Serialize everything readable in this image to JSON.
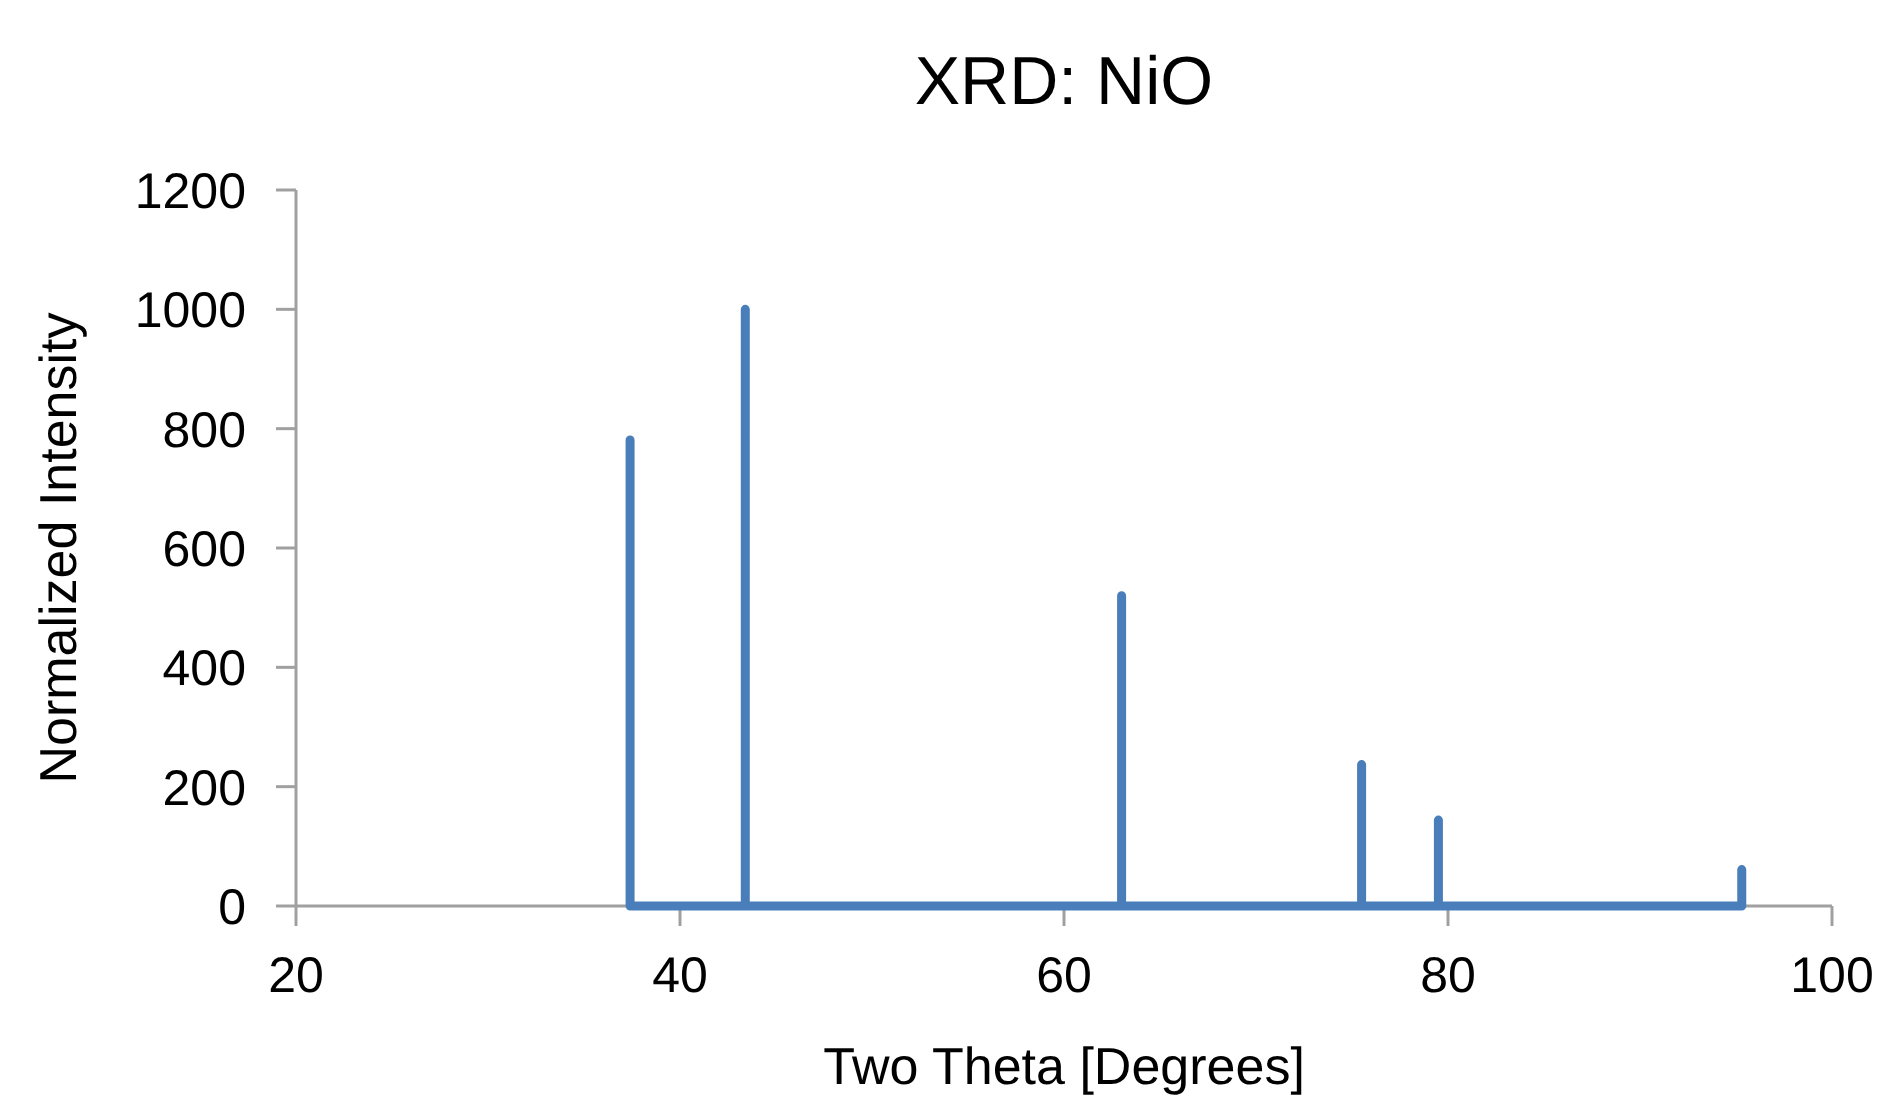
{
  "chart_data": {
    "type": "line",
    "title": "XRD: NiO",
    "xlabel": "Two Theta [Degrees]",
    "ylabel": "Normalized Intensity",
    "x": [
      37.4,
      37.4,
      37.4,
      43.4,
      43.4,
      43.4,
      63.0,
      63.0,
      63.0,
      75.5,
      75.5,
      75.5,
      79.5,
      79.5,
      79.5,
      95.3,
      95.3
    ],
    "series": [
      {
        "color": "#4a7ebb",
        "values": [
          0,
          781,
          0,
          0,
          1000,
          0,
          0,
          520,
          0,
          0,
          237,
          0,
          0,
          144,
          0,
          0,
          61
        ]
      }
    ],
    "xlim": [
      20,
      100
    ],
    "xticks": [
      20,
      40,
      60,
      80,
      100
    ],
    "ylim": [
      0,
      1200
    ],
    "yticks": [
      0,
      200,
      400,
      600,
      800,
      1000,
      1200
    ],
    "grid": false,
    "marker": "none",
    "line_style": "solid"
  }
}
